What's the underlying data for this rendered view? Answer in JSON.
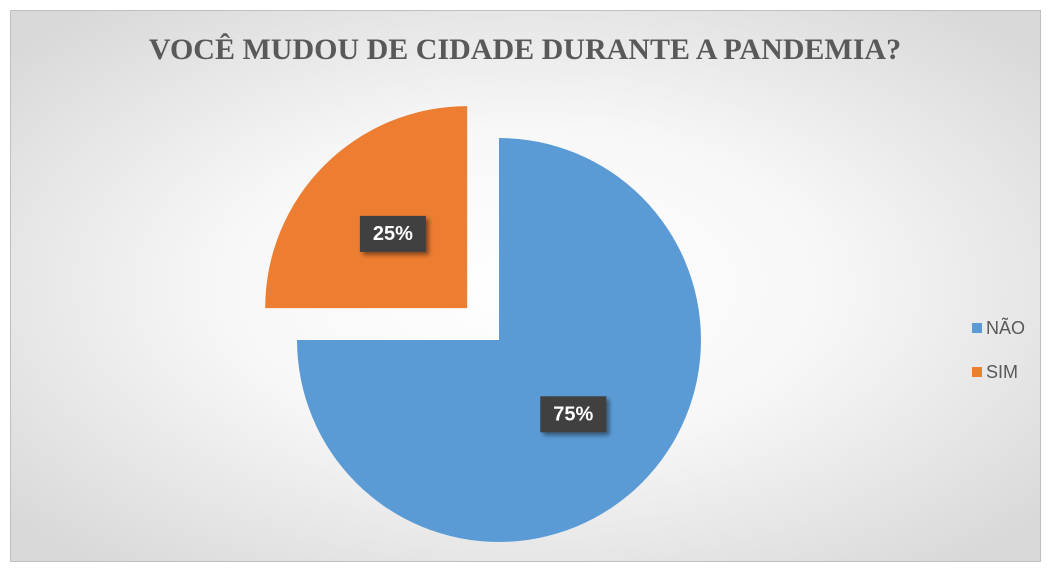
{
  "chart_data": {
    "type": "pie",
    "title": "VOCÊ MUDOU DE CIDADE DURANTE A PANDEMIA?",
    "categories": [
      "NÃO",
      "SIM"
    ],
    "values": [
      75,
      25
    ],
    "value_labels": [
      "75%",
      "25%"
    ],
    "colors": [
      "#5b9bd5",
      "#ed7d31"
    ],
    "legend": "right"
  }
}
